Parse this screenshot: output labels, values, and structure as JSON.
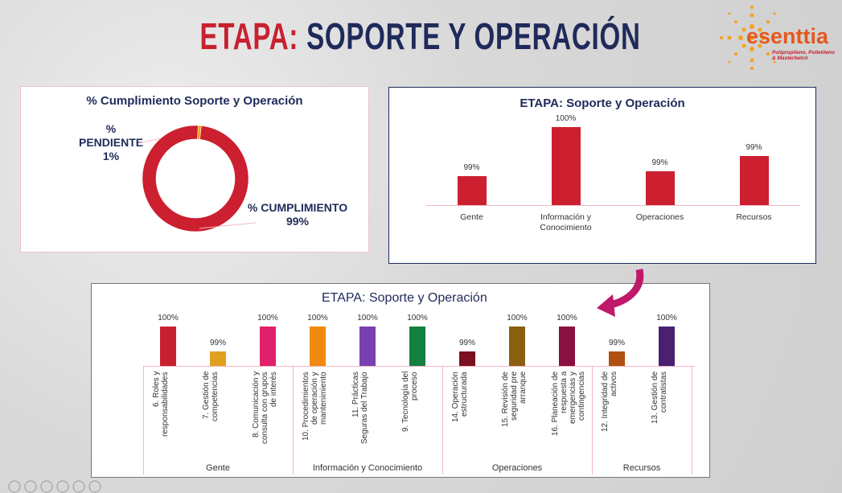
{
  "header": {
    "title_prefix": "ETAPA:",
    "title": "SOPORTE Y OPERACIÓN",
    "logo": "esenttia",
    "tagline": "Polipropileno, Polietileno & Masterbatch"
  },
  "chart_data": [
    {
      "type": "pie",
      "title": "% Cumplimiento Soporte y Operación",
      "donut": true,
      "categories": [
        "% PENDIENTE",
        "% CUMPLIMIENTO"
      ],
      "values": [
        1,
        99
      ],
      "value_labels": [
        "1%",
        "99%"
      ],
      "colors": [
        "#f4a21c",
        "#cc1f2f"
      ]
    },
    {
      "type": "bar",
      "title": "ETAPA: Soporte y Operación",
      "categories": [
        "Gente",
        "Información y Conocimiento",
        "Operaciones",
        "Recursos"
      ],
      "values": [
        99.0,
        100,
        99.1,
        99.4
      ],
      "value_labels": [
        "99%",
        "100%",
        "99%",
        "99%"
      ],
      "color": "#cc1f2f",
      "ylim": [
        98.4,
        100
      ]
    },
    {
      "type": "grouped_bar",
      "title": "ETAPA: Soporte y Operación",
      "ylim": [
        98.4,
        100
      ],
      "groups": [
        {
          "name": "Gente",
          "categories": [
            "6. Roles y responsabilidades",
            "7. Gestión de competencias",
            "8. Comunicación y consulta con grupos de interés"
          ],
          "values": [
            100,
            99,
            100
          ],
          "value_labels": [
            "100%",
            "99%",
            "100%"
          ],
          "colors": [
            "#c8202f",
            "#e0a020",
            "#e0206a"
          ]
        },
        {
          "name": "Información y Conocimiento",
          "categories": [
            "10. Procedimientos de operación y mantenimiento",
            "11. Prácticas Seguras del Trabajo",
            "9. Tecnología del proceso"
          ],
          "values": [
            100,
            100,
            100
          ],
          "value_labels": [
            "100%",
            "100%",
            "100%"
          ],
          "colors": [
            "#f08a10",
            "#7a3fb0",
            "#138040"
          ]
        },
        {
          "name": "Operaciones",
          "categories": [
            "14. Operación estructurada",
            "15. Revisión de seguridad pre arranque",
            "16. Planeación de respuesta a emergencias y contingencias"
          ],
          "values": [
            99,
            100,
            100
          ],
          "value_labels": [
            "99%",
            "100%",
            "100%"
          ],
          "colors": [
            "#7a1020",
            "#8a6010",
            "#8a1040"
          ]
        },
        {
          "name": "Recursos",
          "categories": [
            "12. Integridad de activos",
            "13. Gestión de contratistas"
          ],
          "values": [
            99,
            100
          ],
          "value_labels": [
            "99%",
            "100%"
          ],
          "colors": [
            "#b05010",
            "#4a2070"
          ]
        }
      ]
    }
  ]
}
